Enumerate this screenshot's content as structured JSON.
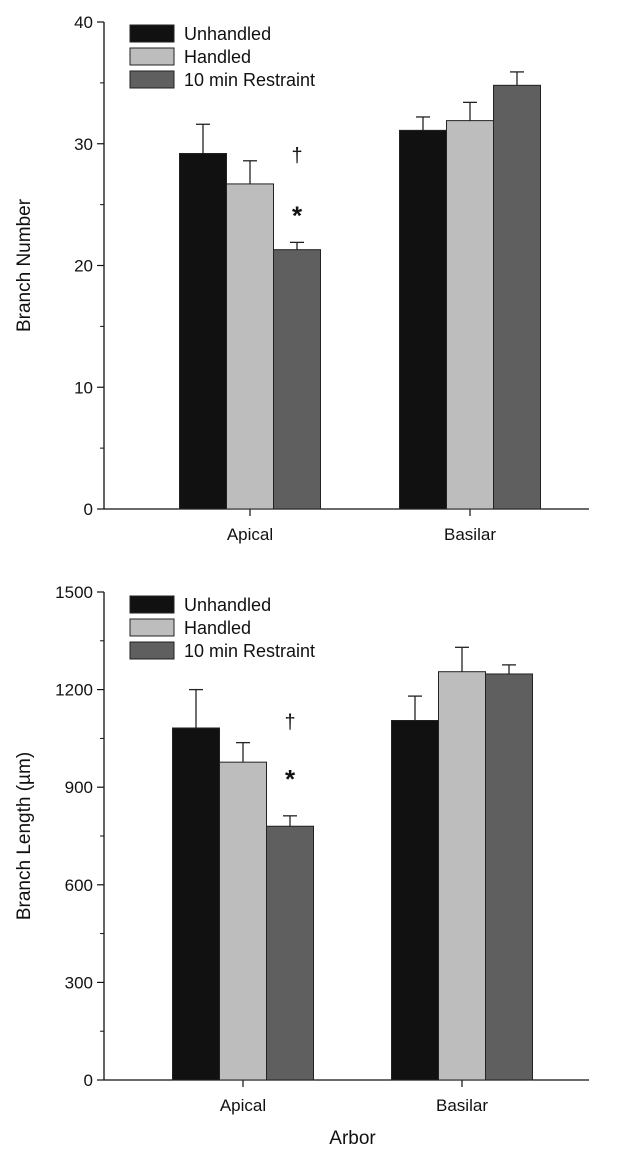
{
  "chart_data": [
    {
      "type": "bar",
      "categories": [
        "Apical",
        "Basilar"
      ],
      "ylabel": "Branch Number",
      "xlabel": "",
      "ylim": [
        0,
        40
      ],
      "yticks": [
        "0",
        "10",
        "20",
        "30",
        "40"
      ],
      "error_bars": true,
      "legend_position": "top-left",
      "series": [
        {
          "name": "Unhandled",
          "color": "#111111",
          "values": [
            29.2,
            31.1
          ],
          "errors": [
            2.4,
            1.1
          ]
        },
        {
          "name": "Handled",
          "color": "#bdbdbd",
          "values": [
            26.7,
            31.9
          ],
          "errors": [
            1.9,
            1.5
          ]
        },
        {
          "name": "10 min Restraint",
          "color": "#5f5f5f",
          "values": [
            21.3,
            34.8
          ],
          "errors": [
            0.6,
            1.1
          ]
        }
      ],
      "annotations": [
        {
          "text": "†",
          "category": "Apical",
          "series": "10 min Restraint",
          "y": 28.5
        },
        {
          "text": "*",
          "category": "Apical",
          "series": "10 min Restraint",
          "y": 24.5
        }
      ]
    },
    {
      "type": "bar",
      "categories": [
        "Apical",
        "Basilar"
      ],
      "ylabel": "Branch Length (µm)",
      "xlabel": "Arbor",
      "ylim": [
        0,
        1500
      ],
      "yticks": [
        "0",
        "300",
        "600",
        "900",
        "1200",
        "1500"
      ],
      "error_bars": true,
      "legend_position": "top-left",
      "series": [
        {
          "name": "Unhandled",
          "color": "#111111",
          "values": [
            1082,
            1105
          ],
          "errors": [
            118,
            75
          ]
        },
        {
          "name": "Handled",
          "color": "#bdbdbd",
          "values": [
            977,
            1255
          ],
          "errors": [
            60,
            75
          ]
        },
        {
          "name": "10 min Restraint",
          "color": "#5f5f5f",
          "values": [
            780,
            1248
          ],
          "errors": [
            32,
            28
          ]
        }
      ],
      "annotations": [
        {
          "text": "†",
          "category": "Apical",
          "series": "10 min Restraint",
          "y": 1080
        },
        {
          "text": "*",
          "category": "Apical",
          "series": "10 min Restraint",
          "y": 940
        }
      ]
    }
  ]
}
